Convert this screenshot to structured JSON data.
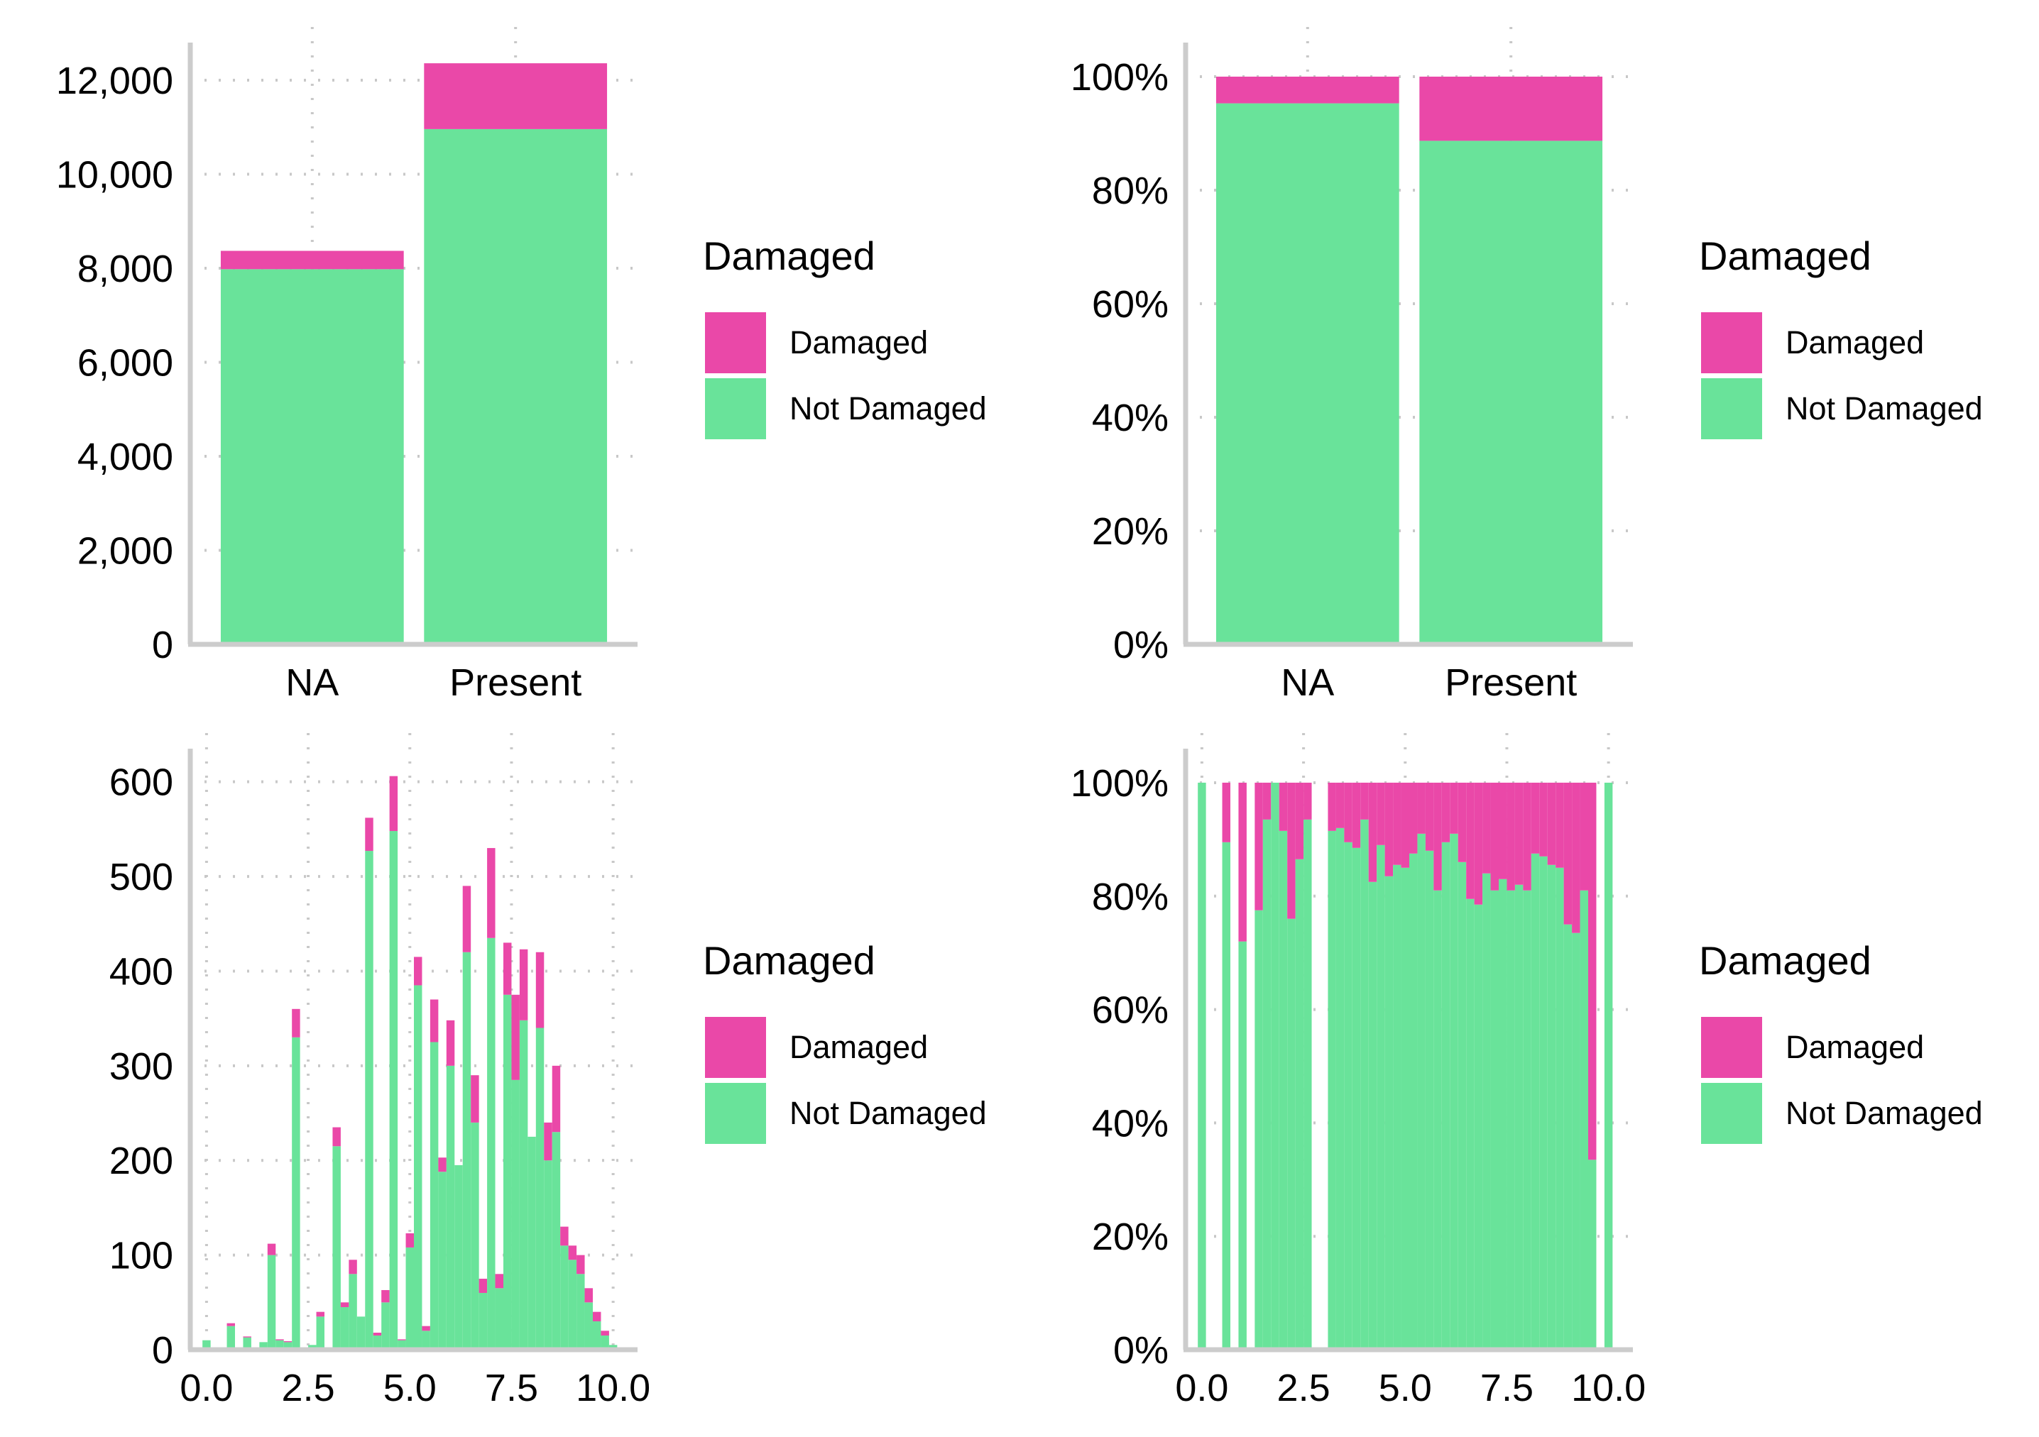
{
  "colors": {
    "damaged": "#ea48a8",
    "not_damaged": "#69e39a"
  },
  "chart_data": [
    {
      "type": "bar",
      "position": "stacked",
      "categories": [
        "NA",
        "Present"
      ],
      "series": [
        {
          "name": "Not Damaged",
          "values": [
            7980,
            10960
          ]
        },
        {
          "name": "Damaged",
          "values": [
            390,
            1400
          ]
        }
      ],
      "ylim": [
        0,
        12800
      ],
      "yticks": [
        0,
        2000,
        4000,
        6000,
        8000,
        10000,
        12000
      ],
      "ytick_labels": [
        "0",
        "2,000",
        "4,000",
        "6,000",
        "8,000",
        "10,000",
        "12,000"
      ],
      "grid": true,
      "legend": {
        "title": "Damaged",
        "placement": "right",
        "entries": [
          "Damaged",
          "Not Damaged"
        ]
      }
    },
    {
      "type": "bar",
      "position": "fill",
      "categories": [
        "NA",
        "Present"
      ],
      "series": [
        {
          "name": "Not Damaged",
          "values": [
            0.953,
            0.887
          ]
        },
        {
          "name": "Damaged",
          "values": [
            0.047,
            0.113
          ]
        }
      ],
      "ylim": [
        0,
        1.06
      ],
      "yticks": [
        0,
        0.2,
        0.4,
        0.6,
        0.8,
        1.0
      ],
      "ytick_labels": [
        "0%",
        "20%",
        "40%",
        "60%",
        "80%",
        "100%"
      ],
      "grid": true,
      "legend": {
        "title": "Damaged",
        "placement": "right",
        "entries": [
          "Damaged",
          "Not Damaged"
        ]
      }
    },
    {
      "type": "bar",
      "position": "stacked",
      "bin_width": 0.2,
      "x": [
        0,
        0.6,
        1.0,
        1.4,
        1.6,
        1.8,
        2.0,
        2.2,
        2.6,
        2.8,
        3.0,
        3.2,
        3.4,
        3.6,
        3.8,
        4.0,
        4.2,
        4.4,
        4.6,
        4.8,
        5.0,
        5.2,
        5.4,
        5.6,
        5.8,
        6.0,
        6.2,
        6.4,
        6.6,
        6.8,
        7.0,
        7.2,
        7.4,
        7.6,
        7.8,
        8.0,
        8.2,
        8.4,
        8.6,
        8.8,
        9.0,
        9.2,
        9.4,
        9.6,
        9.8,
        10.0
      ],
      "series": [
        {
          "name": "Not Damaged",
          "values": [
            10,
            25,
            13,
            8,
            100,
            10,
            8,
            330,
            5,
            35,
            0,
            215,
            45,
            80,
            35,
            527,
            15,
            50,
            548,
            10,
            108,
            385,
            20,
            325,
            188,
            300,
            195,
            420,
            240,
            60,
            435,
            65,
            375,
            285,
            348,
            225,
            340,
            200,
            230,
            110,
            95,
            80,
            50,
            30,
            15,
            5
          ]
        },
        {
          "name": "Damaged",
          "values": [
            0,
            3,
            1,
            0,
            12,
            1,
            1,
            30,
            0,
            5,
            0,
            20,
            5,
            15,
            0,
            35,
            3,
            13,
            58,
            1,
            15,
            30,
            5,
            45,
            15,
            48,
            0,
            70,
            50,
            15,
            95,
            15,
            55,
            90,
            75,
            0,
            80,
            40,
            70,
            20,
            15,
            20,
            15,
            10,
            5,
            0
          ]
        }
      ],
      "xlim": [
        -0.4,
        10.6
      ],
      "ylim": [
        0,
        635
      ],
      "xticks": [
        0,
        2.5,
        5,
        7.5,
        10
      ],
      "xtick_labels": [
        "0.0",
        "2.5",
        "5.0",
        "7.5",
        "10.0"
      ],
      "yticks": [
        0,
        100,
        200,
        300,
        400,
        500,
        600
      ],
      "ytick_labels": [
        "0",
        "100",
        "200",
        "300",
        "400",
        "500",
        "600"
      ],
      "grid": true,
      "legend": {
        "title": "Damaged",
        "placement": "right",
        "entries": [
          "Damaged",
          "Not Damaged"
        ]
      }
    },
    {
      "type": "bar",
      "position": "fill",
      "bin_width": 0.2,
      "x": [
        0,
        0.6,
        1.0,
        1.4,
        1.6,
        1.8,
        2.0,
        2.2,
        2.4,
        2.6,
        3.2,
        3.4,
        3.6,
        3.8,
        4.0,
        4.2,
        4.4,
        4.6,
        4.8,
        5.0,
        5.2,
        5.4,
        5.6,
        5.8,
        6.0,
        6.2,
        6.4,
        6.6,
        6.8,
        7.0,
        7.2,
        7.4,
        7.6,
        7.8,
        8.0,
        8.2,
        8.4,
        8.6,
        8.8,
        9.0,
        9.2,
        9.4,
        9.6,
        10.0
      ],
      "series": [
        {
          "name": "Not Damaged",
          "values": [
            1.0,
            0.895,
            0.72,
            0.775,
            0.935,
            1.0,
            0.915,
            0.76,
            0.865,
            0.935,
            0.915,
            0.92,
            0.895,
            0.885,
            0.935,
            0.825,
            0.89,
            0.835,
            0.855,
            0.85,
            0.875,
            0.91,
            0.88,
            0.81,
            0.895,
            0.91,
            0.86,
            0.795,
            0.785,
            0.84,
            0.81,
            0.83,
            0.81,
            0.82,
            0.81,
            0.875,
            0.87,
            0.855,
            0.85,
            0.75,
            0.735,
            0.81,
            0.335,
            1.0
          ]
        },
        {
          "name": "Damaged",
          "values": [
            0.0,
            0.105,
            0.28,
            0.225,
            0.065,
            0.0,
            0.085,
            0.24,
            0.135,
            0.065,
            0.085,
            0.08,
            0.105,
            0.115,
            0.065,
            0.175,
            0.11,
            0.165,
            0.145,
            0.15,
            0.125,
            0.09,
            0.12,
            0.19,
            0.105,
            0.09,
            0.14,
            0.205,
            0.215,
            0.16,
            0.19,
            0.17,
            0.19,
            0.18,
            0.19,
            0.125,
            0.13,
            0.145,
            0.15,
            0.25,
            0.265,
            0.19,
            0.665,
            0.0
          ]
        }
      ],
      "xlim": [
        -0.4,
        10.6
      ],
      "ylim": [
        0,
        1.06
      ],
      "xticks": [
        0,
        2.5,
        5,
        7.5,
        10
      ],
      "xtick_labels": [
        "0.0",
        "2.5",
        "5.0",
        "7.5",
        "10.0"
      ],
      "yticks": [
        0,
        0.2,
        0.4,
        0.6,
        0.8,
        1.0
      ],
      "ytick_labels": [
        "0%",
        "20%",
        "40%",
        "60%",
        "80%",
        "100%"
      ],
      "grid": true,
      "legend": {
        "title": "Damaged",
        "placement": "right",
        "entries": [
          "Damaged",
          "Not Damaged"
        ]
      }
    }
  ]
}
